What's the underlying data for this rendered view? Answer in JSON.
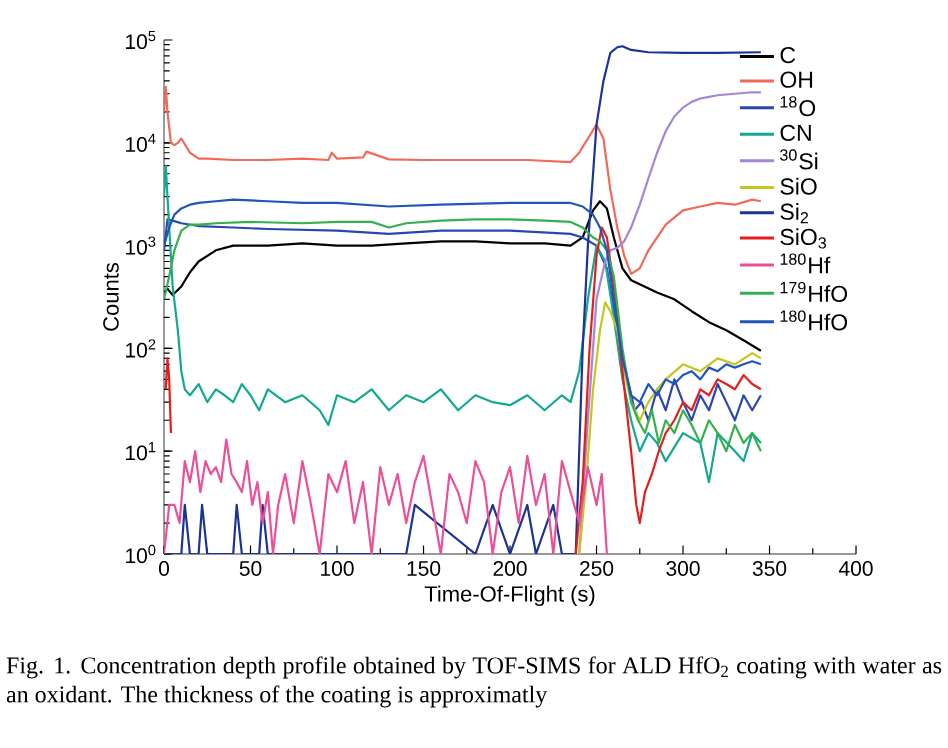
{
  "chart_data": {
    "type": "line",
    "xlabel": "Time-Of-Flight (s)",
    "ylabel": "Counts",
    "log": "y",
    "legend": "top right",
    "marker": "none",
    "line_style": "solid",
    "xlim": [
      0,
      400
    ],
    "xticks": [
      0,
      50,
      100,
      150,
      200,
      250,
      300,
      350,
      400
    ],
    "ylim": [
      1,
      100000
    ],
    "yticks": [
      {
        "value": 1,
        "label": "10$^{0}$"
      },
      {
        "value": 10,
        "label": "10$^{1}$"
      },
      {
        "value": 100,
        "label": "10$^{2}$"
      },
      {
        "value": 1000,
        "label": "10$^{3}$"
      },
      {
        "value": 10000,
        "label": "10$^{4}$"
      },
      {
        "value": 100000,
        "label": "10$^{5}$"
      }
    ],
    "annotations": [
      "Fig. 1.  Concentration depth profile obtained by TOF-SIMS for ALD HfO$_{2}$ coating with water as an oxidant. The thickness of the coating is approximatly"
    ],
    "series": [
      {
        "name": "C",
        "color": "#000000",
        "x": [
          0,
          2,
          5,
          10,
          15,
          20,
          30,
          40,
          60,
          80,
          100,
          120,
          140,
          160,
          180,
          200,
          220,
          235,
          242,
          248,
          252,
          256,
          260,
          265,
          270,
          275,
          285,
          295,
          305,
          315,
          325,
          335,
          345
        ],
        "values": [
          350,
          380,
          330,
          400,
          550,
          700,
          900,
          1000,
          1000,
          1050,
          1000,
          1000,
          1050,
          1100,
          1100,
          1050,
          1050,
          1000,
          1200,
          2200,
          2700,
          2300,
          1200,
          600,
          460,
          420,
          350,
          300,
          230,
          180,
          150,
          120,
          95
        ]
      },
      {
        "name": "OH",
        "color": "#f06a5a",
        "x": [
          0,
          1,
          2,
          4,
          6,
          8,
          10,
          15,
          20,
          25,
          40,
          60,
          80,
          95,
          97,
          100,
          115,
          117,
          130,
          150,
          180,
          210,
          235,
          240,
          245,
          250,
          254,
          258,
          262,
          266,
          270,
          275,
          280,
          290,
          300,
          310,
          320,
          330,
          340,
          345
        ],
        "values": [
          20000,
          35000,
          20000,
          10000,
          9500,
          10000,
          11000,
          8000,
          7000,
          7000,
          6800,
          6800,
          7000,
          6800,
          8000,
          7000,
          7200,
          8200,
          6900,
          6800,
          6800,
          6800,
          6500,
          8000,
          11000,
          15000,
          11000,
          3500,
          1500,
          800,
          530,
          600,
          900,
          1600,
          2200,
          2400,
          2600,
          2500,
          2800,
          2700
        ]
      },
      {
        "name": "$^{18}$O",
        "color": "#2a46b0",
        "x": [
          0,
          2,
          5,
          10,
          20,
          40,
          60,
          100,
          130,
          160,
          200,
          235,
          242,
          250,
          256,
          262,
          268,
          272,
          276,
          280,
          285,
          290,
          295,
          300,
          305,
          310,
          315,
          320,
          325,
          330,
          335,
          340,
          345
        ],
        "values": [
          900,
          1800,
          1750,
          1650,
          1550,
          1500,
          1450,
          1400,
          1300,
          1400,
          1400,
          1300,
          1200,
          1000,
          600,
          150,
          50,
          25,
          30,
          20,
          40,
          25,
          50,
          30,
          20,
          35,
          25,
          45,
          30,
          20,
          35,
          25,
          35
        ]
      },
      {
        "name": "CN",
        "color": "#12a892",
        "x": [
          0,
          1,
          3,
          5,
          8,
          10,
          12,
          15,
          20,
          25,
          30,
          35,
          40,
          45,
          50,
          55,
          60,
          70,
          80,
          90,
          95,
          100,
          110,
          120,
          130,
          140,
          150,
          160,
          170,
          180,
          190,
          200,
          210,
          220,
          230,
          235,
          240,
          245,
          250,
          255,
          260,
          265,
          270,
          275,
          280,
          285,
          290,
          300,
          310,
          315,
          320,
          330,
          335,
          340,
          345
        ],
        "values": [
          3000,
          6000,
          1500,
          400,
          150,
          60,
          40,
          35,
          45,
          30,
          40,
          35,
          30,
          45,
          35,
          25,
          40,
          30,
          35,
          25,
          18,
          35,
          30,
          40,
          25,
          35,
          30,
          40,
          25,
          35,
          30,
          28,
          35,
          25,
          35,
          30,
          60,
          300,
          1000,
          700,
          200,
          50,
          20,
          10,
          15,
          12,
          8,
          15,
          12,
          5,
          15,
          10,
          8,
          15,
          12
        ]
      },
      {
        "name": "$^{30}$Si",
        "color": "#a585d5",
        "x": [
          240,
          245,
          250,
          255,
          258,
          262,
          266,
          270,
          275,
          280,
          285,
          290,
          295,
          300,
          305,
          310,
          315,
          320,
          330,
          340,
          345
        ],
        "values": [
          1,
          20,
          300,
          700,
          900,
          950,
          1100,
          1500,
          2500,
          4500,
          8000,
          13000,
          18000,
          22000,
          25000,
          27000,
          28000,
          29000,
          30000,
          31000,
          31000
        ]
      },
      {
        "name": "SiO",
        "color": "#c8c41e",
        "x": [
          236,
          240,
          244,
          248,
          252,
          255,
          258,
          262,
          266,
          270,
          275,
          280,
          285,
          290,
          300,
          310,
          320,
          330,
          340,
          345
        ],
        "values": [
          1,
          1,
          5,
          40,
          150,
          280,
          230,
          150,
          60,
          30,
          20,
          30,
          40,
          50,
          70,
          60,
          80,
          70,
          90,
          80
        ]
      },
      {
        "name": "Si$_{2}$",
        "color": "#1a3394",
        "x": [
          0,
          10,
          12,
          15,
          20,
          22,
          25,
          40,
          42,
          45,
          55,
          57,
          60,
          100,
          140,
          145,
          180,
          190,
          200,
          210,
          215,
          225,
          230,
          238,
          240,
          242,
          245,
          248,
          250,
          254,
          258,
          262,
          265,
          270,
          280,
          300,
          320,
          345
        ],
        "values": [
          1,
          1,
          3,
          1,
          1,
          3,
          1,
          1,
          3,
          1,
          1,
          3,
          1,
          1,
          1,
          3,
          1,
          3,
          1,
          3,
          1,
          3,
          1,
          1,
          10,
          100,
          1000,
          5000,
          15000,
          40000,
          75000,
          85000,
          87000,
          80000,
          76000,
          75000,
          75000,
          76000
        ]
      },
      {
        "name": "SiO$_{3}$",
        "color": "#e51d1d",
        "x": [
          1,
          2,
          3,
          4,
          5,
          238,
          242,
          246,
          250,
          253,
          256,
          260,
          265,
          270,
          273,
          275,
          278,
          282,
          286,
          290,
          295,
          300,
          305,
          310,
          315,
          320,
          325,
          330,
          335,
          340,
          345
        ],
        "values": [
          40,
          80,
          50,
          15,
          null,
          1,
          5,
          100,
          800,
          1500,
          1200,
          400,
          60,
          10,
          3,
          2,
          4,
          6,
          10,
          15,
          20,
          30,
          25,
          40,
          35,
          50,
          45,
          40,
          55,
          45,
          40
        ]
      },
      {
        "name": "$^{180}$Hf",
        "color": "#ea4f98",
        "x": [
          0,
          3,
          6,
          9,
          12,
          15,
          18,
          21,
          24,
          27,
          30,
          33,
          36,
          39,
          42,
          45,
          48,
          51,
          54,
          57,
          60,
          63,
          66,
          70,
          75,
          80,
          85,
          90,
          95,
          100,
          105,
          110,
          115,
          120,
          125,
          130,
          135,
          140,
          145,
          150,
          155,
          160,
          165,
          170,
          175,
          180,
          185,
          190,
          195,
          200,
          205,
          210,
          215,
          220,
          225,
          230,
          235,
          240,
          245,
          250,
          253,
          256
        ],
        "values": [
          1,
          3,
          3,
          2,
          8,
          5,
          10,
          4,
          8,
          6,
          7,
          5,
          13,
          6,
          5,
          4,
          8,
          3,
          5,
          2,
          4,
          1,
          3,
          6,
          2,
          8,
          3,
          1,
          6,
          4,
          8,
          2,
          5,
          1,
          7,
          3,
          6,
          2,
          5,
          9,
          3,
          1,
          6,
          4,
          2,
          8,
          5,
          1,
          4,
          7,
          2,
          9,
          3,
          6,
          1,
          8,
          4,
          2,
          7,
          3,
          6,
          1
        ]
      },
      {
        "name": "$^{179}$HfO",
        "color": "#34b04e",
        "x": [
          0,
          3,
          6,
          10,
          15,
          20,
          30,
          50,
          80,
          100,
          120,
          130,
          140,
          160,
          180,
          200,
          220,
          235,
          242,
          248,
          252,
          256,
          260,
          265,
          270,
          274,
          278,
          282,
          286,
          290,
          295,
          300,
          305,
          310,
          315,
          320,
          325,
          330,
          335,
          340,
          345
        ],
        "values": [
          300,
          500,
          900,
          1400,
          1600,
          1600,
          1650,
          1700,
          1650,
          1700,
          1700,
          1500,
          1650,
          1750,
          1800,
          1800,
          1750,
          1700,
          1500,
          1200,
          1100,
          900,
          500,
          100,
          30,
          20,
          15,
          25,
          12,
          20,
          15,
          25,
          18,
          12,
          20,
          15,
          10,
          18,
          12,
          15,
          10
        ]
      },
      {
        "name": "$^{180}$HfO",
        "color": "#2255b8",
        "x": [
          0,
          3,
          6,
          10,
          15,
          20,
          30,
          40,
          60,
          80,
          100,
          130,
          160,
          200,
          235,
          242,
          248,
          252,
          256,
          260,
          265,
          270,
          275,
          280,
          285,
          290,
          295,
          300,
          305,
          310,
          315,
          320,
          325,
          330,
          335,
          340,
          345
        ],
        "values": [
          1000,
          1500,
          2000,
          2300,
          2500,
          2600,
          2700,
          2800,
          2700,
          2600,
          2600,
          2400,
          2500,
          2600,
          2600,
          2400,
          2000,
          1500,
          900,
          300,
          80,
          35,
          30,
          45,
          35,
          50,
          45,
          55,
          60,
          50,
          65,
          60,
          70,
          65,
          70,
          75,
          70
        ]
      }
    ]
  }
}
